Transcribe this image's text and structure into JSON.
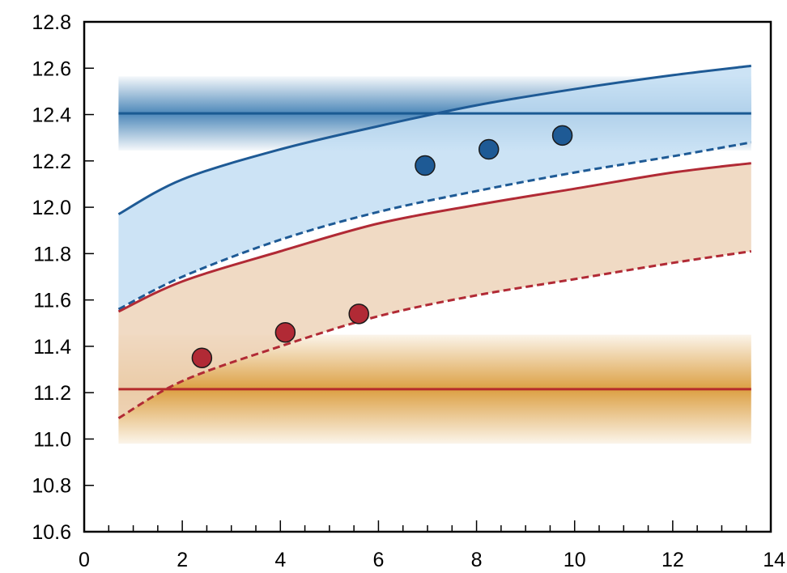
{
  "chart_data": {
    "type": "line",
    "title": "",
    "xlabel": "",
    "ylabel": "",
    "xlim": [
      0,
      14
    ],
    "ylim": [
      10.6,
      12.8
    ],
    "x_ticks": [
      "0",
      "2",
      "4",
      "6",
      "8",
      "10",
      "12",
      "14"
    ],
    "y_ticks": [
      "10.6",
      "10.8",
      "11.0",
      "11.2",
      "11.4",
      "11.6",
      "11.8",
      "12.0",
      "12.2",
      "12.4",
      "12.6",
      "12.8"
    ],
    "grid": false,
    "horizontal_bands": [
      {
        "center": 12.405,
        "low": 12.245,
        "high": 12.565,
        "color": "#2e73ad",
        "line_color": "#1a5a92"
      },
      {
        "center": 11.215,
        "low": 10.98,
        "high": 11.45,
        "color": "#d8952e",
        "line_color": "#b52b2b"
      }
    ],
    "series": [
      {
        "color": "#1e5a95",
        "fill": "#c3def3",
        "upper": {
          "x": [
            0.7,
            2,
            4,
            6,
            8,
            10,
            12,
            13.6
          ],
          "y": [
            11.97,
            12.12,
            12.25,
            12.35,
            12.44,
            12.51,
            12.57,
            12.61
          ]
        },
        "lower": {
          "x": [
            0.7,
            2,
            4,
            6,
            8,
            10,
            12,
            13.6
          ],
          "y": [
            11.56,
            11.7,
            11.86,
            11.98,
            12.07,
            12.15,
            12.22,
            12.28
          ]
        },
        "points": {
          "x": [
            6.95,
            8.25,
            9.75
          ],
          "y": [
            12.18,
            12.25,
            12.31
          ]
        }
      },
      {
        "color": "#b12a35",
        "fill": "#edd3ba",
        "upper": {
          "x": [
            0.7,
            2,
            4,
            6,
            8,
            10,
            12,
            13.6
          ],
          "y": [
            11.55,
            11.68,
            11.81,
            11.93,
            12.01,
            12.08,
            12.15,
            12.19
          ]
        },
        "lower": {
          "x": [
            0.7,
            2,
            4,
            6,
            8,
            10,
            12,
            13.6
          ],
          "y": [
            11.09,
            11.25,
            11.4,
            11.53,
            11.62,
            11.69,
            11.76,
            11.81
          ]
        },
        "points": {
          "x": [
            2.4,
            4.1,
            5.6
          ],
          "y": [
            11.35,
            11.46,
            11.54
          ]
        }
      }
    ]
  }
}
